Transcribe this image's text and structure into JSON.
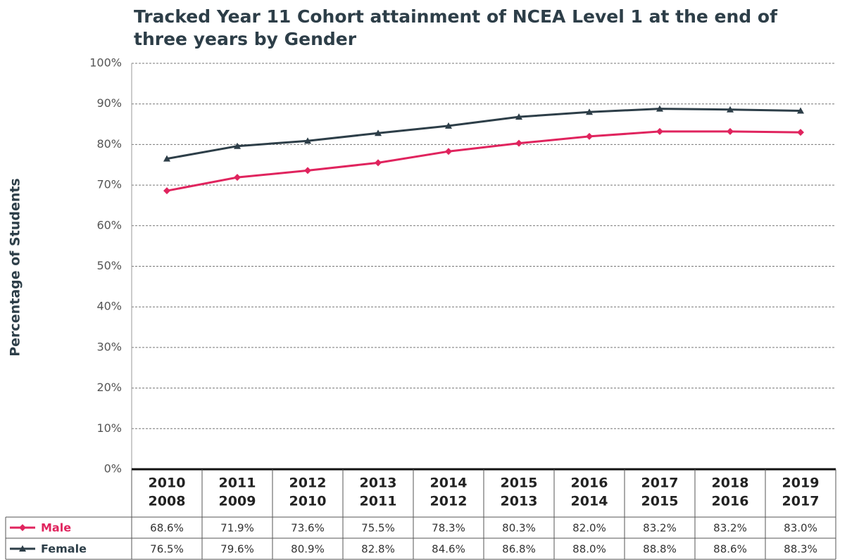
{
  "chart_data": {
    "type": "line",
    "title": "Tracked Year 11 Cohort attainment of NCEA Level 1 at the end of three years by Gender",
    "y_label": "Percentage of Students",
    "categories": [
      [
        "2010",
        "2008"
      ],
      [
        "2011",
        "2009"
      ],
      [
        "2012",
        "2010"
      ],
      [
        "2013",
        "2011"
      ],
      [
        "2014",
        "2012"
      ],
      [
        "2015",
        "2013"
      ],
      [
        "2016",
        "2014"
      ],
      [
        "2017",
        "2015"
      ],
      [
        "2018",
        "2016"
      ],
      [
        "2019",
        "2017"
      ]
    ],
    "series": [
      {
        "name": "Male",
        "color": "#e0245e",
        "marker": "diamond",
        "values": [
          68.6,
          71.9,
          73.6,
          75.5,
          78.3,
          80.3,
          82.0,
          83.2,
          83.2,
          83.0
        ],
        "value_labels": [
          "68.6%",
          "71.9%",
          "73.6%",
          "75.5%",
          "78.3%",
          "80.3%",
          "82.0%",
          "83.2%",
          "83.2%",
          "83.0%"
        ]
      },
      {
        "name": "Female",
        "color": "#2d3e48",
        "marker": "triangle",
        "values": [
          76.5,
          79.6,
          80.9,
          82.8,
          84.6,
          86.8,
          88.0,
          88.8,
          88.6,
          88.3
        ],
        "value_labels": [
          "76.5%",
          "79.6%",
          "80.9%",
          "82.8%",
          "84.6%",
          "86.8%",
          "88.0%",
          "88.8%",
          "88.6%",
          "88.3%"
        ]
      }
    ],
    "ylim": [
      0,
      100
    ],
    "yticks": [
      {
        "value": 0,
        "label": "0%"
      },
      {
        "value": 10,
        "label": "10%"
      },
      {
        "value": 20,
        "label": "20%"
      },
      {
        "value": 30,
        "label": "30%"
      },
      {
        "value": 40,
        "label": "40%"
      },
      {
        "value": 50,
        "label": "50%"
      },
      {
        "value": 60,
        "label": "60%"
      },
      {
        "value": 70,
        "label": "70%"
      },
      {
        "value": 80,
        "label": "80%"
      },
      {
        "value": 90,
        "label": "90%"
      },
      {
        "value": 100,
        "label": "100%"
      }
    ],
    "grid": true
  }
}
